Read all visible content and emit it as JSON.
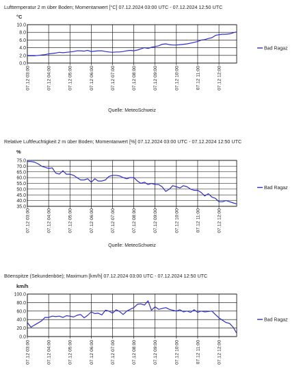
{
  "chart_data": [
    {
      "type": "line",
      "title": "Lufttemperatur 2 m über Boden; Momentanwert [°C]  07.12.2024 03:00 UTC - 07.12.2024 12:50 UTC",
      "ylabel": "°C",
      "source": "Quelle: MeteoSchweiz",
      "ylim": [
        0,
        10
      ],
      "yticks": [
        "0.0",
        "2.0",
        "4.0",
        "6.0",
        "8.0",
        "10.0"
      ],
      "ytick_values": [
        0,
        2,
        4,
        6,
        8,
        10
      ],
      "xticks": [
        "07.12 03:00",
        "07.12 04:00",
        "07.12 05:00",
        "07.12 06:00",
        "07.12 07:00",
        "07.12 08:00",
        "07.12 09:00",
        "07.12 10:00",
        "07.12 11:00",
        "07.12 12:00"
      ],
      "xtick_hours": [
        3,
        4,
        5,
        6,
        7,
        8,
        9,
        10,
        11,
        12
      ],
      "xlim_hours": [
        3,
        12.8333
      ],
      "grid": true,
      "legend": "right",
      "series": [
        {
          "name": "Bad Ragaz",
          "color": "#2b2bd9",
          "x_hours": [
            3.0,
            3.17,
            3.33,
            3.5,
            3.67,
            3.83,
            4.0,
            4.17,
            4.33,
            4.5,
            4.67,
            4.83,
            5.0,
            5.17,
            5.33,
            5.5,
            5.67,
            5.83,
            6.0,
            6.17,
            6.33,
            6.5,
            6.67,
            6.83,
            7.0,
            7.17,
            7.33,
            7.5,
            7.67,
            7.83,
            8.0,
            8.17,
            8.33,
            8.5,
            8.67,
            8.83,
            9.0,
            9.17,
            9.33,
            9.5,
            9.67,
            9.83,
            10.0,
            10.17,
            10.33,
            10.5,
            10.67,
            10.83,
            11.0,
            11.17,
            11.33,
            11.5,
            11.67,
            11.83,
            12.0,
            12.17,
            12.33,
            12.5,
            12.67,
            12.83
          ],
          "values": [
            1.9,
            1.9,
            1.9,
            2.0,
            2.1,
            2.2,
            2.4,
            2.5,
            2.6,
            2.8,
            2.7,
            2.8,
            2.9,
            3.0,
            3.2,
            3.2,
            3.1,
            3.3,
            3.0,
            3.1,
            3.2,
            3.2,
            3.0,
            2.9,
            2.8,
            2.9,
            2.9,
            3.0,
            3.2,
            3.3,
            3.2,
            3.4,
            3.7,
            4.0,
            3.8,
            4.1,
            4.3,
            4.5,
            4.9,
            5.0,
            4.8,
            4.7,
            4.7,
            4.8,
            4.9,
            5.0,
            5.2,
            5.4,
            5.6,
            6.0,
            6.1,
            6.4,
            6.6,
            7.2,
            7.4,
            7.5,
            7.5,
            7.6,
            7.9,
            8.1
          ]
        }
      ]
    },
    {
      "type": "line",
      "title": "Relative Luftfeuchtigkeit 2 m über Boden; Momentanwert [%]  07.12.2024 03:00 UTC - 07.12.2024 12:50 UTC",
      "ylabel": "%",
      "source": "Quelle: MeteoSchweiz",
      "ylim": [
        35,
        75
      ],
      "yticks": [
        "35.0",
        "40.0",
        "45.0",
        "50.0",
        "55.0",
        "60.0",
        "65.0",
        "70.0",
        "75.0"
      ],
      "ytick_values": [
        35,
        40,
        45,
        50,
        55,
        60,
        65,
        70,
        75
      ],
      "xticks": [
        "07.12 03:00",
        "07.12 04:00",
        "07.12 05:00",
        "07.12 06:00",
        "07.12 07:00",
        "07.12 08:00",
        "07.12 09:00",
        "07.12 10:00",
        "07.12 11:00",
        "07.12 12:00"
      ],
      "xtick_hours": [
        3,
        4,
        5,
        6,
        7,
        8,
        9,
        10,
        11,
        12
      ],
      "xlim_hours": [
        3,
        12.8333
      ],
      "grid": true,
      "legend": "right",
      "series": [
        {
          "name": "Bad Ragaz",
          "color": "#2b2bd9",
          "x_hours": [
            3.0,
            3.17,
            3.33,
            3.5,
            3.67,
            3.83,
            4.0,
            4.17,
            4.33,
            4.5,
            4.67,
            4.83,
            5.0,
            5.17,
            5.33,
            5.5,
            5.67,
            5.83,
            6.0,
            6.17,
            6.33,
            6.5,
            6.67,
            6.83,
            7.0,
            7.17,
            7.33,
            7.5,
            7.67,
            7.83,
            8.0,
            8.17,
            8.33,
            8.5,
            8.67,
            8.83,
            9.0,
            9.17,
            9.33,
            9.5,
            9.67,
            9.83,
            10.0,
            10.17,
            10.33,
            10.5,
            10.67,
            10.83,
            11.0,
            11.17,
            11.33,
            11.5,
            11.67,
            11.83,
            12.0,
            12.17,
            12.33,
            12.5,
            12.67,
            12.83
          ],
          "values": [
            74,
            74,
            73.5,
            72,
            70,
            69,
            68,
            68.5,
            64,
            63,
            66,
            63,
            63,
            62,
            60,
            58,
            58,
            59,
            56,
            59,
            57,
            57,
            58,
            61,
            62,
            62,
            61.5,
            60,
            59,
            60,
            60,
            57,
            55,
            56,
            54,
            55,
            54,
            54,
            52,
            48,
            50,
            53,
            52,
            51,
            53,
            52,
            50,
            49,
            49,
            47,
            44,
            46,
            43,
            42,
            39,
            39,
            40,
            39,
            38,
            37
          ]
        }
      ]
    },
    {
      "type": "line",
      "title": "Böenspitze (Sekundenböe); Maximum [km/h]  07.12.2024 03:00 UTC - 07.12.2024 12:50 UTC",
      "ylabel": "km/h",
      "source": "",
      "ylim": [
        0,
        100
      ],
      "yticks": [
        "0.0",
        "20.0",
        "40.0",
        "60.0",
        "80.0",
        "100.0"
      ],
      "ytick_values": [
        0,
        20,
        40,
        60,
        80,
        100
      ],
      "xticks": [
        "07.12 03:00",
        "07.12 04:00",
        "07.12 05:00",
        "07.12 06:00",
        "07.12 07:00",
        "07.12 08:00",
        "07.12 09:00",
        "07.12 10:00",
        "07.12 11:00",
        "07.12 12:00"
      ],
      "xtick_hours": [
        3,
        4,
        5,
        6,
        7,
        8,
        9,
        10,
        11,
        12
      ],
      "xlim_hours": [
        3,
        12.8333
      ],
      "grid": true,
      "legend": "right",
      "series": [
        {
          "name": "Bad Ragaz",
          "color": "#2b2bd9",
          "x_hours": [
            3.0,
            3.17,
            3.33,
            3.5,
            3.67,
            3.83,
            4.0,
            4.17,
            4.33,
            4.5,
            4.67,
            4.83,
            5.0,
            5.17,
            5.33,
            5.5,
            5.67,
            5.83,
            6.0,
            6.17,
            6.33,
            6.5,
            6.67,
            6.83,
            7.0,
            7.17,
            7.33,
            7.5,
            7.67,
            7.83,
            8.0,
            8.17,
            8.33,
            8.5,
            8.67,
            8.83,
            9.0,
            9.17,
            9.33,
            9.5,
            9.67,
            9.83,
            10.0,
            10.17,
            10.33,
            10.5,
            10.67,
            10.83,
            11.0,
            11.17,
            11.33,
            11.5,
            11.67,
            11.83,
            12.0,
            12.17,
            12.33,
            12.5,
            12.67,
            12.83
          ],
          "values": [
            33,
            22,
            27,
            32,
            37,
            45,
            45,
            48,
            47,
            48,
            45,
            49,
            48,
            46,
            50,
            52,
            44,
            50,
            58,
            54,
            55,
            51,
            62,
            60,
            55,
            63,
            59,
            52,
            60,
            64,
            68,
            76,
            77,
            74,
            84,
            62,
            70,
            64,
            66,
            68,
            64,
            62,
            60,
            63,
            58,
            60,
            57,
            63,
            57,
            60,
            58,
            59,
            60,
            52,
            44,
            38,
            33,
            31,
            22,
            8
          ]
        }
      ]
    }
  ]
}
